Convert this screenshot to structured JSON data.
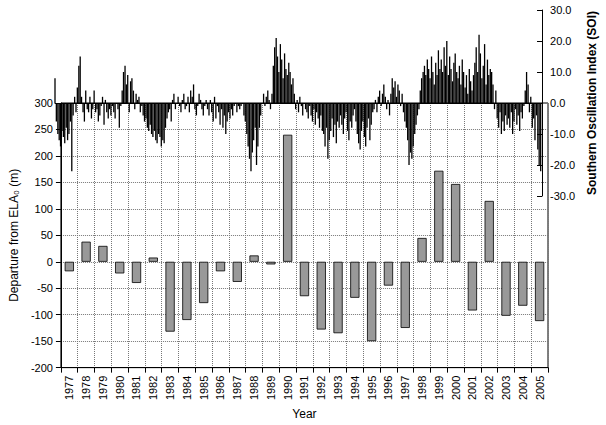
{
  "chart_data": [
    {
      "type": "bar",
      "xlabel": "Year",
      "ylabel": "Departure from ELA₀ (m)",
      "categories": [
        "1977",
        "1978",
        "1979",
        "1980",
        "1981",
        "1982",
        "1983",
        "1984",
        "1985",
        "1986",
        "1987",
        "1988",
        "1989",
        "1990",
        "1991",
        "1992",
        "1993",
        "1994",
        "1995",
        "1996",
        "1997",
        "1998",
        "1999",
        "2000",
        "2001",
        "2002",
        "2003",
        "2004",
        "2005"
      ],
      "values": [
        -18,
        38,
        30,
        -22,
        -40,
        8,
        -132,
        -110,
        -78,
        -18,
        -38,
        12,
        -5,
        240,
        -65,
        -128,
        -135,
        -68,
        -150,
        -45,
        -125,
        45,
        172,
        147,
        -92,
        115,
        -102,
        -83,
        -112
      ],
      "color": "#999999",
      "ylim": [
        -200,
        300
      ],
      "yticks": [
        -200,
        -150,
        -100,
        -50,
        0,
        50,
        100,
        150,
        200,
        250,
        300
      ],
      "grid": true
    },
    {
      "type": "bar",
      "ylabel": "Southern Oscillation Index (SOI)",
      "x": [
        1977,
        1977.08,
        1977.17,
        1977.25,
        1977.33,
        1977.42,
        1977.5,
        1977.58,
        1977.67,
        1977.75,
        1977.83,
        1977.92,
        1978,
        1978.08,
        1978.17,
        1978.25,
        1978.33,
        1978.42,
        1978.5,
        1978.58,
        1978.67,
        1978.75,
        1978.83,
        1978.92,
        1979,
        1979.08,
        1979.17,
        1979.25,
        1979.33,
        1979.42,
        1979.5,
        1979.58,
        1979.67,
        1979.75,
        1979.83,
        1979.92,
        1980,
        1980.08,
        1980.17,
        1980.25,
        1980.33,
        1980.42,
        1980.5,
        1980.58,
        1980.67,
        1980.75,
        1980.83,
        1980.92,
        1981,
        1981.08,
        1981.17,
        1981.25,
        1981.33,
        1981.42,
        1981.5,
        1981.58,
        1981.67,
        1981.75,
        1981.83,
        1981.92,
        1982,
        1982.08,
        1982.17,
        1982.25,
        1982.33,
        1982.42,
        1982.5,
        1982.58,
        1982.67,
        1982.75,
        1982.83,
        1982.92,
        1983,
        1983.08,
        1983.17,
        1983.25,
        1983.33,
        1983.42,
        1983.5,
        1983.58,
        1983.67,
        1983.75,
        1983.83,
        1983.92,
        1984,
        1984.08,
        1984.17,
        1984.25,
        1984.33,
        1984.42,
        1984.5,
        1984.58,
        1984.67,
        1984.75,
        1984.83,
        1984.92,
        1985,
        1985.08,
        1985.17,
        1985.25,
        1985.33,
        1985.42,
        1985.5,
        1985.58,
        1985.67,
        1985.75,
        1985.83,
        1985.92,
        1986,
        1986.08,
        1986.17,
        1986.25,
        1986.33,
        1986.42,
        1986.5,
        1986.58,
        1986.67,
        1986.75,
        1986.83,
        1986.92,
        1987,
        1987.08,
        1987.17,
        1987.25,
        1987.33,
        1987.42,
        1987.5,
        1987.58,
        1987.67,
        1987.75,
        1987.83,
        1987.92,
        1988,
        1988.08,
        1988.17,
        1988.25,
        1988.33,
        1988.42,
        1988.5,
        1988.58,
        1988.67,
        1988.75,
        1988.83,
        1988.92,
        1989,
        1989.08,
        1989.17,
        1989.25,
        1989.33,
        1989.42,
        1989.5,
        1989.58,
        1989.67,
        1989.75,
        1989.83,
        1989.92,
        1990,
        1990.08,
        1990.17,
        1990.25,
        1990.33,
        1990.42,
        1990.5,
        1990.58,
        1990.67,
        1990.75,
        1990.83,
        1990.92,
        1991,
        1991.08,
        1991.17,
        1991.25,
        1991.33,
        1991.42,
        1991.5,
        1991.58,
        1991.67,
        1991.75,
        1991.83,
        1991.92,
        1992,
        1992.08,
        1992.17,
        1992.25,
        1992.33,
        1992.42,
        1992.5,
        1992.58,
        1992.67,
        1992.75,
        1992.83,
        1992.92,
        1993,
        1993.08,
        1993.17,
        1993.25,
        1993.33,
        1993.42,
        1993.5,
        1993.58,
        1993.67,
        1993.75,
        1993.83,
        1993.92,
        1994,
        1994.08,
        1994.17,
        1994.25,
        1994.33,
        1994.42,
        1994.5,
        1994.58,
        1994.67,
        1994.75,
        1994.83,
        1994.92,
        1995,
        1995.08,
        1995.17,
        1995.25,
        1995.33,
        1995.42,
        1995.5,
        1995.58,
        1995.67,
        1995.75,
        1995.83,
        1995.92,
        1996,
        1996.08,
        1996.17,
        1996.25,
        1996.33,
        1996.42,
        1996.5,
        1996.58,
        1996.67,
        1996.75,
        1996.83,
        1996.92,
        1997,
        1997.08,
        1997.17,
        1997.25,
        1997.33,
        1997.42,
        1997.5,
        1997.58,
        1997.67,
        1997.75,
        1997.83,
        1997.92,
        1998,
        1998.08,
        1998.17,
        1998.25,
        1998.33,
        1998.42,
        1998.5,
        1998.58,
        1998.67,
        1998.75,
        1998.83,
        1998.92,
        1999,
        1999.08,
        1999.17,
        1999.25,
        1999.33,
        1999.42,
        1999.5,
        1999.58,
        1999.67,
        1999.75,
        1999.83,
        1999.92,
        2000,
        2000.08,
        2000.17,
        2000.25,
        2000.33,
        2000.42,
        2000.5,
        2000.58,
        2000.67,
        2000.75,
        2000.83,
        2000.92,
        2001,
        2001.08,
        2001.17,
        2001.25,
        2001.33,
        2001.42,
        2001.5,
        2001.58,
        2001.67,
        2001.75,
        2001.83,
        2001.92,
        2002,
        2002.08,
        2002.17,
        2002.25,
        2002.33,
        2002.42,
        2002.5,
        2002.58,
        2002.67,
        2002.75,
        2002.83,
        2002.92,
        2003,
        2003.08,
        2003.17,
        2003.25,
        2003.33,
        2003.42,
        2003.5,
        2003.58,
        2003.67,
        2003.75,
        2003.83,
        2003.92,
        2004,
        2004.08,
        2004.17,
        2004.25,
        2004.33,
        2004.42,
        2004.5,
        2004.58,
        2004.67,
        2004.75,
        2004.83,
        2004.92,
        2005,
        2005.08,
        2005.17,
        2005.25,
        2005.33,
        2005.42,
        2005.5,
        2005.58,
        2005.67,
        2005.75,
        2005.83,
        2005.92
      ],
      "values": [
        8,
        -6,
        -10,
        -12,
        -14,
        -9,
        -11,
        -13,
        -8,
        -12,
        -10,
        -6,
        -22,
        -4,
        2,
        -3,
        5,
        12,
        15,
        2,
        -3,
        -6,
        4,
        -2,
        -3,
        2,
        -5,
        -2,
        4,
        -3,
        -2,
        -6,
        -4,
        -1,
        2,
        -7,
        1,
        -3,
        -5,
        -2,
        -4,
        -1,
        -3,
        -5,
        0,
        -2,
        -8,
        -1,
        4,
        10,
        12,
        6,
        9,
        -3,
        7,
        8,
        4,
        -2,
        3,
        1,
        2,
        -3,
        -1,
        -4,
        -6,
        -5,
        -8,
        -9,
        -7,
        -10,
        -11,
        -9,
        -12,
        -13,
        -10,
        -11,
        -14,
        -12,
        -13,
        -8,
        -5,
        -3,
        -2,
        -6,
        1,
        3,
        -2,
        0,
        2,
        -1,
        -3,
        1,
        3,
        -2,
        -1,
        2,
        -3,
        4,
        2,
        6,
        -2,
        -4,
        -1,
        3,
        1,
        -2,
        -4,
        -1,
        1,
        -2,
        -4,
        1,
        -3,
        -6,
        2,
        -5,
        -1,
        -3,
        -7,
        -2,
        -8,
        -4,
        -10,
        -6,
        -3,
        -5,
        -2,
        -4,
        -1,
        0,
        -3,
        -1,
        -2,
        -1,
        0,
        -4,
        -6,
        -10,
        -14,
        -18,
        -22,
        -16,
        -12,
        -8,
        -20,
        -14,
        -8,
        -4,
        0,
        3,
        -1,
        2,
        4,
        1,
        -2,
        3,
        12,
        18,
        21,
        15,
        10,
        19,
        14,
        8,
        16,
        11,
        9,
        13,
        10,
        6,
        8,
        3,
        -2,
        1,
        -3,
        2,
        -1,
        -4,
        0,
        -2,
        -3,
        -5,
        -1,
        -4,
        -6,
        -2,
        -7,
        -3,
        -5,
        -8,
        -4,
        -9,
        -10,
        -14,
        -8,
        -18,
        -12,
        -9,
        -5,
        -11,
        -7,
        -13,
        -6,
        -8,
        -4,
        -7,
        -10,
        -5,
        -3,
        -9,
        -12,
        -6,
        -8,
        -4,
        -2,
        -6,
        -10,
        -13,
        -15,
        -9,
        -6,
        -11,
        -14,
        -8,
        -5,
        -12,
        -7,
        -3,
        -2,
        1,
        -3,
        2,
        4,
        -1,
        3,
        6,
        2,
        -2,
        1,
        -4,
        3,
        8,
        5,
        7,
        2,
        6,
        4,
        -1,
        3,
        -3,
        -6,
        -8,
        -12,
        -20,
        -16,
        -18,
        -14,
        -10,
        -7,
        -4,
        -2,
        4,
        8,
        10,
        12,
        9,
        14,
        11,
        8,
        15,
        10,
        6,
        13,
        9,
        17,
        11,
        14,
        10,
        18,
        12,
        20,
        9,
        15,
        11,
        7,
        13,
        16,
        10,
        8,
        12,
        6,
        14,
        10,
        5,
        9,
        3,
        11,
        7,
        4,
        9,
        13,
        18,
        10,
        22,
        16,
        8,
        12,
        19,
        6,
        14,
        9,
        11,
        10,
        6,
        -2,
        4,
        -5,
        -8,
        -3,
        -10,
        -6,
        -9,
        -4,
        -7,
        -5,
        -8,
        -3,
        -10,
        -6,
        -2,
        -7,
        -4,
        -9,
        -3,
        -5,
        -1,
        4,
        10,
        6,
        -3,
        2,
        -8,
        -5,
        -12,
        -4,
        -15,
        -20,
        -22
      ],
      "color": "#000000",
      "xlim": [
        1977,
        2006
      ],
      "ylim": [
        -30,
        30
      ],
      "yticks": [
        {
          "value": -30,
          "label": "-30.0"
        },
        {
          "value": -20,
          "label": "-20.0"
        },
        {
          "value": -10,
          "label": "-10.0"
        },
        {
          "value": 0,
          "label": "0.0"
        },
        {
          "value": 10,
          "label": "10.0"
        },
        {
          "value": 20,
          "label": "20.0"
        },
        {
          "value": 30,
          "label": "30.0"
        }
      ],
      "tick_labels": "y"
    }
  ]
}
